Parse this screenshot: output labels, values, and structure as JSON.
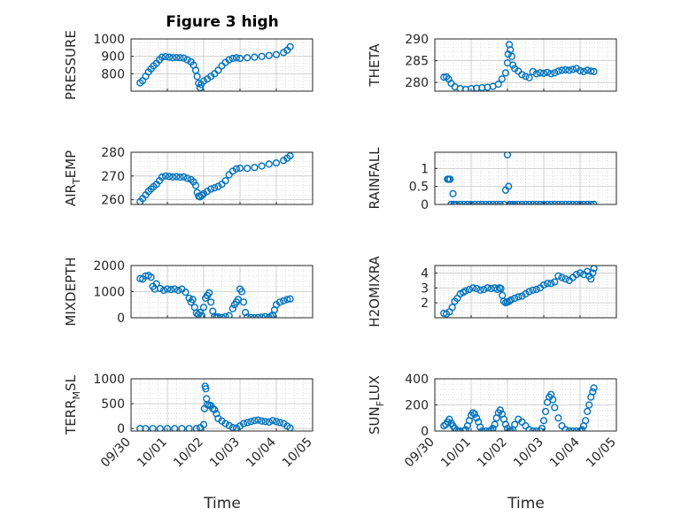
{
  "figure": {
    "title": "Figure 3 high",
    "marker_color": "#0072BD",
    "x_ticks": [
      "09/30",
      "10/01",
      "10/02",
      "10/03",
      "10/04",
      "10/05"
    ],
    "xlabel": "Time"
  },
  "chart_data": [
    {
      "type": "scatter",
      "name": "pressure",
      "ylabel": "PRESSURE",
      "ylim": [
        700,
        1000
      ],
      "yticks": [
        800,
        900,
        1000
      ],
      "grid": true,
      "x": [
        0.25,
        0.32,
        0.4,
        0.48,
        0.55,
        0.62,
        0.7,
        0.78,
        0.85,
        0.95,
        1.05,
        1.15,
        1.25,
        1.35,
        1.45,
        1.55,
        1.65,
        1.72,
        1.78,
        1.82,
        1.86,
        1.9,
        1.93,
        2.0,
        2.1,
        2.2,
        2.3,
        2.4,
        2.5,
        2.6,
        2.7,
        2.8,
        2.9,
        3.0,
        3.2,
        3.4,
        3.6,
        3.8,
        4.0,
        4.2,
        4.3,
        4.38
      ],
      "y": [
        748,
        760,
        785,
        810,
        828,
        845,
        860,
        880,
        895,
        898,
        895,
        892,
        893,
        892,
        890,
        880,
        868,
        850,
        820,
        785,
        745,
        720,
        738,
        758,
        770,
        785,
        800,
        820,
        845,
        865,
        880,
        888,
        892,
        888,
        892,
        895,
        900,
        905,
        910,
        922,
        935,
        955
      ]
    },
    {
      "type": "scatter",
      "name": "theta",
      "ylabel": "THETA",
      "ylim": [
        278,
        290
      ],
      "yticks": [
        280,
        285,
        290
      ],
      "grid": true,
      "x": [
        0.25,
        0.32,
        0.38,
        0.45,
        0.55,
        0.7,
        0.85,
        1.0,
        1.15,
        1.3,
        1.45,
        1.6,
        1.75,
        1.85,
        1.95,
        2.0,
        2.02,
        2.05,
        2.08,
        2.12,
        2.15,
        2.2,
        2.3,
        2.4,
        2.5,
        2.6,
        2.7,
        2.8,
        2.9,
        3.0,
        3.1,
        3.2,
        3.3,
        3.4,
        3.5,
        3.6,
        3.7,
        3.8,
        3.9,
        4.0,
        4.1,
        4.2,
        4.3,
        4.38
      ],
      "y": [
        281.2,
        281.3,
        280.8,
        279.8,
        279.0,
        278.6,
        278.4,
        278.6,
        278.7,
        278.8,
        278.9,
        279.1,
        279.6,
        280.8,
        282.2,
        284.5,
        286.5,
        288.7,
        287.5,
        286.0,
        284.0,
        283.2,
        282.6,
        281.8,
        281.4,
        281.1,
        282.5,
        282.0,
        282.2,
        282.1,
        282.3,
        282.0,
        282.2,
        282.6,
        282.8,
        282.9,
        282.8,
        283.0,
        283.2,
        282.7,
        282.5,
        282.8,
        282.6,
        282.5
      ]
    },
    {
      "type": "scatter",
      "name": "air-temp",
      "ylabel": "AIR",
      "ylabel_sub": "T",
      "ylabel_rest": "EMP",
      "ylim": [
        258,
        280
      ],
      "yticks": [
        260,
        270,
        280
      ],
      "grid": true,
      "x": [
        0.25,
        0.32,
        0.4,
        0.48,
        0.55,
        0.62,
        0.7,
        0.78,
        0.85,
        0.95,
        1.05,
        1.15,
        1.25,
        1.35,
        1.45,
        1.55,
        1.65,
        1.72,
        1.78,
        1.82,
        1.86,
        1.9,
        1.95,
        2.0,
        2.1,
        2.2,
        2.3,
        2.4,
        2.5,
        2.6,
        2.7,
        2.8,
        2.9,
        3.0,
        3.2,
        3.4,
        3.6,
        3.8,
        4.0,
        4.2,
        4.3,
        4.38
      ],
      "y": [
        259.2,
        260.5,
        262,
        263.5,
        264.5,
        265.5,
        266.5,
        268,
        269.5,
        270,
        269.8,
        269.6,
        269.7,
        269.5,
        269.6,
        269,
        268.5,
        267.5,
        266,
        263,
        261.5,
        261.2,
        261.8,
        262.5,
        263.5,
        264.5,
        265,
        265.6,
        266.5,
        268,
        270.5,
        272,
        273,
        273.3,
        273.2,
        273.6,
        274.2,
        275,
        275.5,
        276.5,
        277.5,
        278.5
      ]
    },
    {
      "type": "scatter",
      "name": "rainfall",
      "ylabel": "RAINFALL",
      "ylim": [
        0,
        1.45
      ],
      "yticks": [
        0,
        0.5,
        1
      ],
      "grid": true,
      "x": [
        0.35,
        0.38,
        0.42,
        0.45,
        0.5,
        0.52,
        0.55,
        0.6,
        0.7,
        0.8,
        0.9,
        1.0,
        1.1,
        1.2,
        1.3,
        1.4,
        1.5,
        1.6,
        1.7,
        1.8,
        1.9,
        1.95,
        2.0,
        2.03,
        2.06,
        2.1,
        2.15,
        2.2,
        2.3,
        2.4,
        2.5,
        2.6,
        2.7,
        2.8,
        2.9,
        3.0,
        3.1,
        3.2,
        3.3,
        3.4,
        3.5,
        3.6,
        3.7,
        3.8,
        3.9,
        4.0,
        4.1,
        4.2,
        4.3,
        4.38
      ],
      "y": [
        0.7,
        0.7,
        0.7,
        0,
        0.3,
        0,
        0,
        0,
        0,
        0,
        0,
        0,
        0,
        0,
        0,
        0,
        0,
        0,
        0,
        0,
        0,
        0.4,
        1.38,
        0.5,
        0,
        0,
        0,
        0,
        0,
        0,
        0,
        0,
        0,
        0,
        0,
        0,
        0,
        0,
        0,
        0,
        0,
        0,
        0,
        0,
        0,
        0,
        0,
        0,
        0,
        0
      ]
    },
    {
      "type": "scatter",
      "name": "mixdepth",
      "ylabel": "MIXDEPTH",
      "ylim": [
        0,
        2000
      ],
      "yticks": [
        0,
        1000,
        2000
      ],
      "grid": true,
      "x": [
        0.25,
        0.32,
        0.4,
        0.48,
        0.55,
        0.6,
        0.65,
        0.7,
        0.8,
        0.9,
        1.0,
        1.1,
        1.2,
        1.3,
        1.4,
        1.5,
        1.6,
        1.65,
        1.7,
        1.75,
        1.8,
        1.85,
        1.9,
        1.95,
        2.0,
        2.05,
        2.1,
        2.15,
        2.2,
        2.25,
        2.3,
        2.35,
        2.4,
        2.5,
        2.6,
        2.7,
        2.8,
        2.85,
        2.9,
        2.95,
        3.0,
        3.05,
        3.1,
        3.15,
        3.2,
        3.3,
        3.4,
        3.5,
        3.6,
        3.7,
        3.8,
        3.85,
        3.9,
        3.95,
        4.0,
        4.1,
        4.2,
        4.3,
        4.38
      ],
      "y": [
        1500,
        1480,
        1600,
        1620,
        1550,
        1200,
        1100,
        1300,
        1120,
        1050,
        1100,
        1080,
        1100,
        1050,
        1100,
        980,
        750,
        600,
        700,
        400,
        180,
        120,
        200,
        80,
        400,
        750,
        850,
        950,
        600,
        250,
        50,
        20,
        30,
        10,
        40,
        80,
        350,
        500,
        600,
        700,
        1100,
        1000,
        600,
        200,
        20,
        10,
        0,
        10,
        20,
        40,
        10,
        60,
        100,
        300,
        500,
        600,
        650,
        700,
        720
      ]
    },
    {
      "type": "scatter",
      "name": "h2omixra",
      "ylabel": "H2OMIXRA",
      "ylim": [
        1,
        4.5
      ],
      "yticks": [
        2,
        3,
        4
      ],
      "grid": true,
      "x": [
        0.25,
        0.32,
        0.4,
        0.48,
        0.55,
        0.62,
        0.7,
        0.78,
        0.85,
        0.95,
        1.05,
        1.15,
        1.25,
        1.35,
        1.45,
        1.55,
        1.65,
        1.72,
        1.78,
        1.82,
        1.86,
        1.9,
        1.95,
        2.0,
        2.05,
        2.1,
        2.2,
        2.3,
        2.4,
        2.5,
        2.6,
        2.7,
        2.8,
        2.9,
        3.0,
        3.1,
        3.2,
        3.3,
        3.4,
        3.5,
        3.6,
        3.7,
        3.8,
        3.9,
        4.0,
        4.1,
        4.2,
        4.25,
        4.3,
        4.35,
        4.38
      ],
      "y": [
        1.3,
        1.25,
        1.4,
        1.7,
        2.1,
        2.3,
        2.6,
        2.7,
        2.8,
        2.9,
        3.0,
        2.95,
        2.85,
        2.9,
        3.0,
        2.95,
        3.0,
        2.9,
        3.0,
        2.95,
        2.5,
        2.1,
        2.0,
        2.05,
        2.1,
        2.2,
        2.3,
        2.4,
        2.45,
        2.6,
        2.75,
        2.85,
        2.9,
        3.0,
        3.2,
        3.3,
        3.3,
        3.4,
        3.8,
        3.7,
        3.6,
        3.5,
        3.7,
        3.9,
        4.0,
        3.9,
        4.1,
        3.8,
        3.6,
        4.0,
        4.3
      ]
    },
    {
      "type": "scatter",
      "name": "terr-msl",
      "ylabel": "TERR",
      "ylabel_sub": "M",
      "ylabel_rest": "SL",
      "ylim": [
        -50,
        1000
      ],
      "yticks": [
        0,
        500,
        1000
      ],
      "grid": true,
      "x": [
        0.25,
        0.4,
        0.6,
        0.8,
        1.0,
        1.2,
        1.4,
        1.6,
        1.8,
        1.9,
        2.0,
        2.02,
        2.04,
        2.06,
        2.08,
        2.1,
        2.15,
        2.2,
        2.25,
        2.3,
        2.35,
        2.4,
        2.5,
        2.6,
        2.7,
        2.8,
        2.9,
        3.0,
        3.1,
        3.2,
        3.3,
        3.4,
        3.5,
        3.6,
        3.7,
        3.8,
        3.9,
        4.0,
        4.1,
        4.2,
        4.3,
        4.38
      ],
      "y": [
        0,
        0,
        0,
        0,
        0,
        0,
        0,
        0,
        0,
        20,
        80,
        400,
        850,
        800,
        600,
        480,
        470,
        460,
        400,
        380,
        300,
        200,
        150,
        100,
        60,
        20,
        10,
        50,
        100,
        120,
        140,
        160,
        170,
        150,
        140,
        130,
        160,
        140,
        120,
        100,
        50,
        10
      ]
    },
    {
      "type": "scatter",
      "name": "sun-flux",
      "ylabel": "SUN",
      "ylabel_sub": "F",
      "ylabel_rest": "LUX",
      "ylim": [
        0,
        400
      ],
      "yticks": [
        0,
        200,
        400
      ],
      "grid": true,
      "x": [
        0.25,
        0.3,
        0.35,
        0.4,
        0.45,
        0.5,
        0.55,
        0.6,
        0.65,
        0.7,
        0.8,
        0.85,
        0.9,
        0.95,
        1.0,
        1.05,
        1.1,
        1.15,
        1.2,
        1.25,
        1.3,
        1.4,
        1.5,
        1.55,
        1.6,
        1.65,
        1.7,
        1.75,
        1.8,
        1.85,
        1.9,
        1.95,
        2.0,
        2.05,
        2.1,
        2.15,
        2.2,
        2.3,
        2.4,
        2.5,
        2.6,
        2.7,
        2.8,
        2.9,
        2.95,
        3.0,
        3.05,
        3.1,
        3.15,
        3.2,
        3.25,
        3.3,
        3.4,
        3.5,
        3.6,
        3.7,
        3.8,
        3.9,
        4.0,
        4.05,
        4.1,
        4.15,
        4.2,
        4.25,
        4.3,
        4.35,
        4.38
      ],
      "y": [
        40,
        50,
        70,
        90,
        60,
        40,
        20,
        5,
        0,
        0,
        0,
        10,
        40,
        80,
        120,
        140,
        130,
        100,
        70,
        30,
        0,
        0,
        0,
        5,
        20,
        50,
        100,
        140,
        160,
        130,
        90,
        50,
        20,
        0,
        0,
        10,
        50,
        90,
        70,
        40,
        10,
        0,
        0,
        0,
        20,
        80,
        150,
        220,
        260,
        280,
        240,
        180,
        100,
        40,
        10,
        0,
        0,
        0,
        0,
        10,
        40,
        80,
        150,
        200,
        260,
        300,
        330
      ]
    }
  ]
}
